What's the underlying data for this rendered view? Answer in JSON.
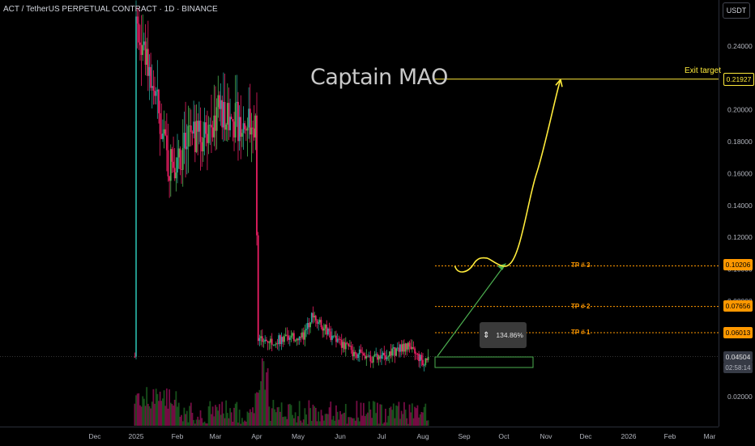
{
  "header": {
    "symbol_title": "ACT / TetherUS PERPETUAL CONTRACT · 1D · BINANCE",
    "currency": "USDT"
  },
  "annotations": {
    "author": "Captain MAO",
    "exit_label": "Exit target",
    "tp1_label": "TP # 1",
    "tp2_label": "TP # 2",
    "tp3_label": "TP # 3",
    "measure_value": "134.86%"
  },
  "price_tags": {
    "exit": "0.21927",
    "tp3": "0.10206",
    "tp2": "0.07656",
    "tp1": "0.06013",
    "last": "0.04504",
    "countdown": "02:58:14"
  },
  "colors": {
    "up": "#26a69a",
    "up_bright": "#4caf50",
    "down": "#e91e63",
    "exit_line": "#ffeb3b",
    "tp_line": "#ff9800",
    "projection": "#ffeb3b",
    "arrow": "#4caf50",
    "last_tag": "#363a45"
  },
  "chart_data": {
    "type": "candlestick",
    "title": "ACT / TetherUS PERPETUAL CONTRACT · 1D · BINANCE",
    "ylabel": "USDT",
    "ylim": [
      0,
      0.25
    ],
    "y_ticks": [
      "0.24000",
      "0.22000",
      "0.20000",
      "0.18000",
      "0.16000",
      "0.14000",
      "0.12000",
      "0.10000",
      "0.08000",
      "0.02000"
    ],
    "x_ticks": [
      "Dec",
      "2025",
      "Feb",
      "Mar",
      "Apr",
      "May",
      "Jun",
      "Jul",
      "Aug",
      "Sep",
      "Oct",
      "Nov",
      "Dec",
      "2026",
      "Feb",
      "Mar"
    ],
    "price_path": [
      {
        "date": "2024-12-01",
        "close": null
      },
      {
        "date": "2025-01-01",
        "close": 0.26
      },
      {
        "date": "2025-01-15",
        "close": 0.21
      },
      {
        "date": "2025-01-25",
        "close": 0.165
      },
      {
        "date": "2025-02-05",
        "close": 0.175
      },
      {
        "date": "2025-02-20",
        "close": 0.185
      },
      {
        "date": "2025-03-05",
        "close": 0.2
      },
      {
        "date": "2025-03-15",
        "close": 0.193
      },
      {
        "date": "2025-03-31",
        "close": 0.19
      },
      {
        "date": "2025-04-02",
        "close": 0.055
      },
      {
        "date": "2025-04-20",
        "close": 0.056
      },
      {
        "date": "2025-05-05",
        "close": 0.058
      },
      {
        "date": "2025-05-12",
        "close": 0.072
      },
      {
        "date": "2025-05-25",
        "close": 0.058
      },
      {
        "date": "2025-06-10",
        "close": 0.048
      },
      {
        "date": "2025-06-25",
        "close": 0.044
      },
      {
        "date": "2025-07-10",
        "close": 0.048
      },
      {
        "date": "2025-07-20",
        "close": 0.052
      },
      {
        "date": "2025-08-01",
        "close": 0.042
      },
      {
        "date": "2025-08-05",
        "close": 0.045
      }
    ],
    "levels": [
      {
        "name": "Exit target",
        "value": 0.21927
      },
      {
        "name": "TP # 3",
        "value": 0.10206
      },
      {
        "name": "TP # 2",
        "value": 0.07656
      },
      {
        "name": "TP # 1",
        "value": 0.06013
      },
      {
        "name": "Last price",
        "value": 0.04504
      }
    ],
    "projection_path": [
      {
        "date": "2025-08-25",
        "price": 0.102
      },
      {
        "date": "2025-09-08",
        "price": 0.101
      },
      {
        "date": "2025-09-18",
        "price": 0.107
      },
      {
        "date": "2025-10-05",
        "price": 0.103
      },
      {
        "date": "2025-10-25",
        "price": 0.16
      },
      {
        "date": "2025-11-12",
        "price": 0.219
      }
    ],
    "grid": false
  }
}
